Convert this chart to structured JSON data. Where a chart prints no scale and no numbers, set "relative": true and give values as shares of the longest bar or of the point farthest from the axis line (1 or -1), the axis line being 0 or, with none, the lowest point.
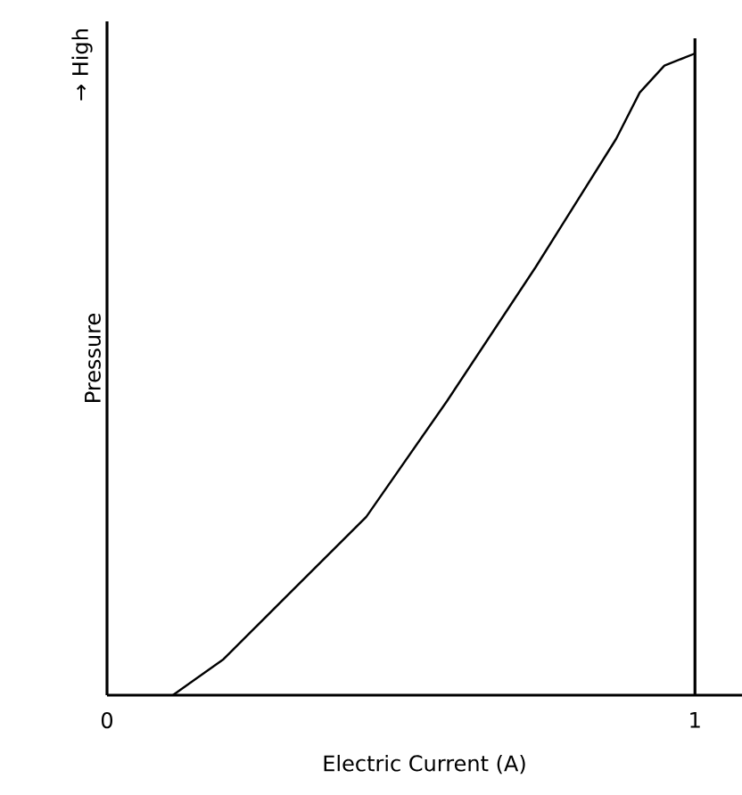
{
  "chart_data": {
    "type": "line",
    "relative": true,
    "xlabel": "Electric Current (A)",
    "ylabel": "Pressure",
    "annotations": [
      "→ High"
    ],
    "x": [
      0.112,
      0.198,
      0.304,
      0.441,
      0.578,
      0.729,
      0.866,
      0.906,
      0.948,
      1.0
    ],
    "series": [
      {
        "color": "#000000",
        "values": [
          0,
          0.056,
          0.153,
          0.278,
          0.458,
          0.667,
          0.867,
          0.939,
          0.981,
          1.0
        ]
      }
    ],
    "xlim": [
      0,
      1.08
    ],
    "xticks": [
      0,
      1
    ],
    "ref_lines": [
      {
        "axis": "x",
        "value": 1,
        "color": "#000000"
      }
    ],
    "grid": false,
    "marker": "none",
    "line_style": "solid"
  }
}
